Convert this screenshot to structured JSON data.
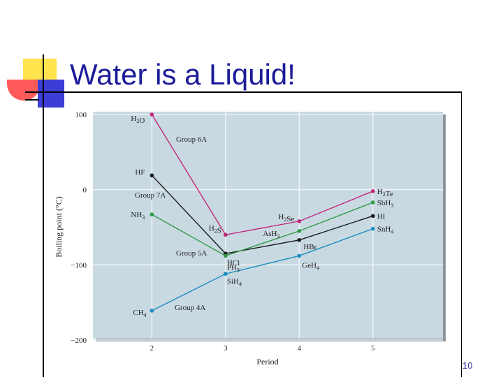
{
  "slide": {
    "title": "Water is a Liquid!",
    "page_number": "10"
  },
  "chart_data": {
    "type": "line",
    "xlabel": "Period",
    "ylabel": "Boiling point (°C)",
    "x": [
      2,
      3,
      4,
      5
    ],
    "xlim": [
      1.2,
      5.95
    ],
    "ylim": [
      -200,
      100
    ],
    "y_ticks": [
      100,
      0,
      -100,
      -200
    ],
    "x_ticks": [
      2,
      3,
      4,
      5
    ],
    "grid": true,
    "background": "#c9d9e2",
    "series": [
      {
        "name": "Group 6A",
        "color": "#c0267a",
        "values": [
          100,
          -60,
          -42,
          -2
        ],
        "labels": [
          "H2O",
          "H2S",
          "H2Se",
          "H2Te"
        ]
      },
      {
        "name": "Group 7A",
        "color": "#1a1a1a",
        "values": [
          19,
          -85,
          -67,
          -35
        ],
        "labels": [
          "HF",
          "HCl",
          "HBr",
          "HI"
        ]
      },
      {
        "name": "Group 5A",
        "color": "#2e9a44",
        "values": [
          -33,
          -88,
          -55,
          -17
        ],
        "labels": [
          "NH3",
          "PH3",
          "AsH3",
          "SbH3"
        ]
      },
      {
        "name": "Group 4A",
        "color": "#1a8fc0",
        "values": [
          -161,
          -112,
          -88,
          -52
        ],
        "labels": [
          "CH4",
          "SiH4",
          "GeH4",
          "SnH4"
        ]
      }
    ]
  }
}
